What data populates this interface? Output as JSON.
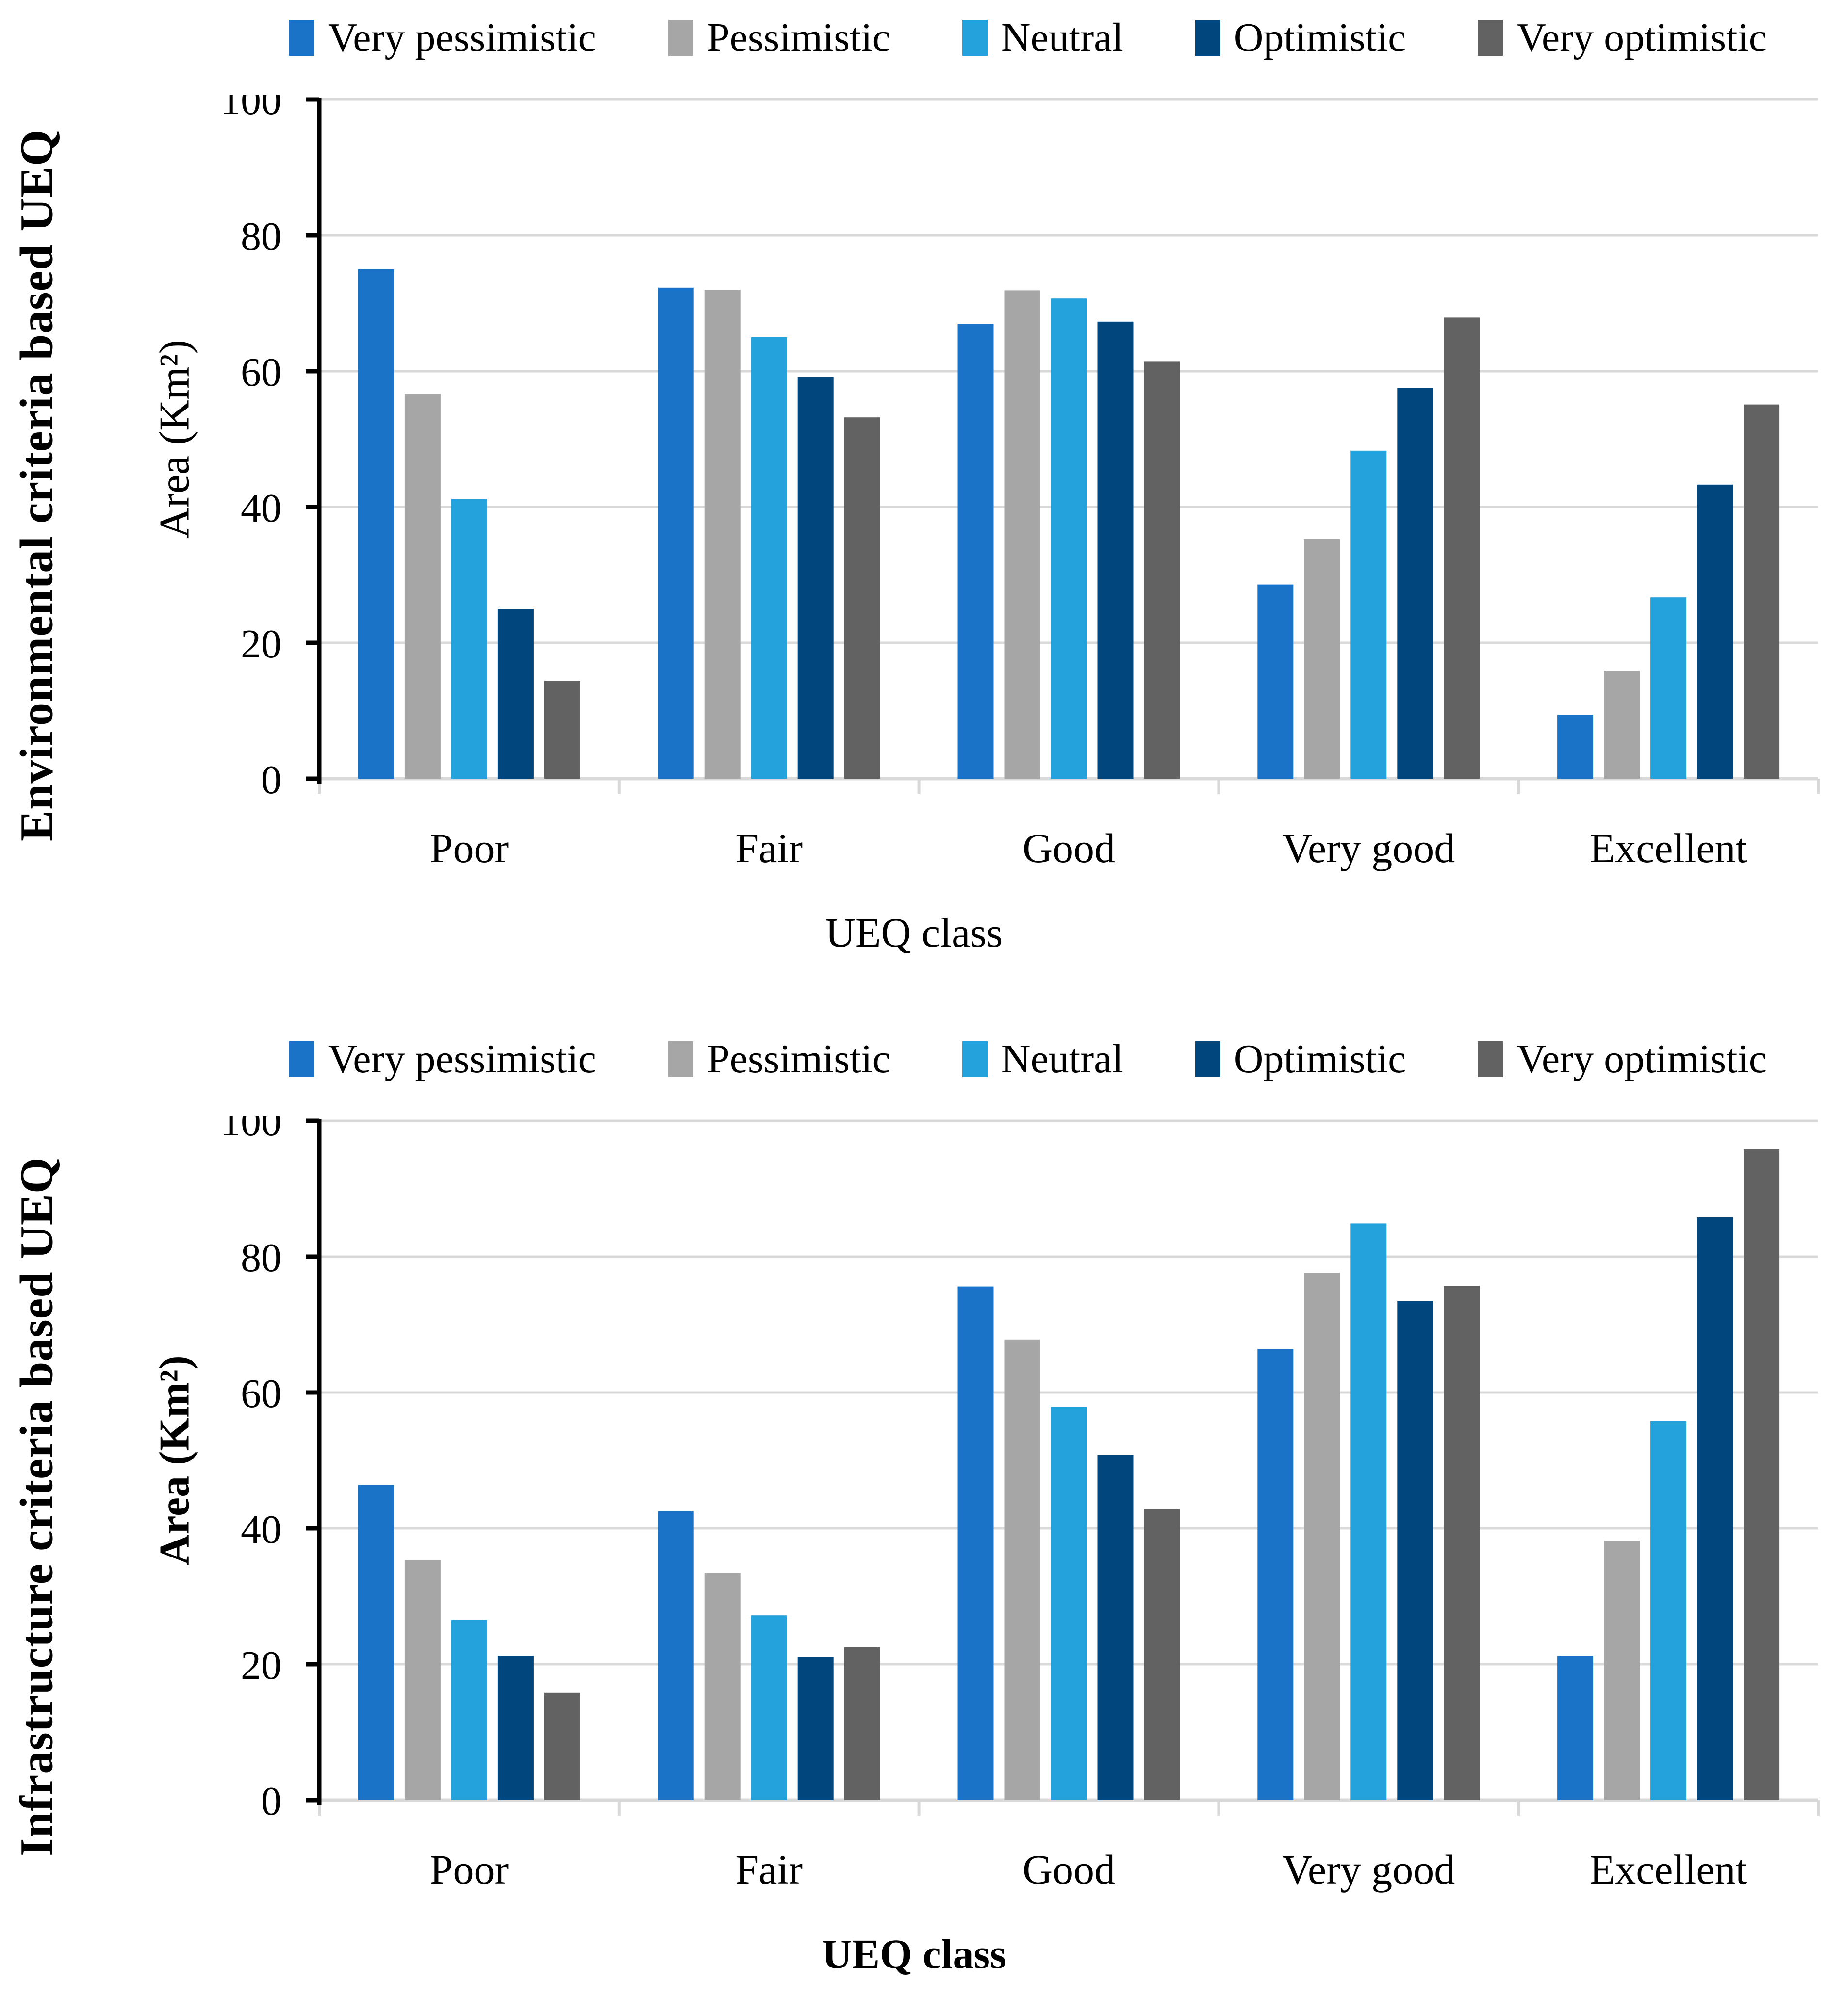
{
  "page": {
    "background": "#FFFFFF"
  },
  "styles": {
    "gridline_color": "#D9D9D9",
    "x_axis_color": "#D9D9D9",
    "y_axis_color": "#000000",
    "text_color": "#000000"
  },
  "chart_data": [
    {
      "type": "bar",
      "title": "Environmental criteria based UEQ",
      "xlabel": "UEQ class",
      "ylabel": "Area (Km²)",
      "categories": [
        "Poor",
        "Fair",
        "Good",
        "Very good",
        "Excellent"
      ],
      "series": [
        {
          "name": "Very pessimistic",
          "color": "#1B73C8",
          "values": [
            75,
            72.3,
            67,
            28.6,
            9.4
          ]
        },
        {
          "name": "Pessimistic",
          "color": "#A6A6A6",
          "values": [
            56.6,
            72,
            71.9,
            35.3,
            15.9
          ]
        },
        {
          "name": "Neutral",
          "color": "#24A2DB",
          "values": [
            41.2,
            65,
            70.7,
            48.3,
            26.7
          ]
        },
        {
          "name": "Optimistic",
          "color": "#02467E",
          "values": [
            25,
            59.1,
            67.3,
            57.5,
            43.3
          ]
        },
        {
          "name": "Very optimistic",
          "color": "#626262",
          "values": [
            14.4,
            53.2,
            61.4,
            67.9,
            55.1
          ]
        }
      ],
      "ylim": [
        0,
        100
      ],
      "yticks": [
        0,
        20,
        40,
        60,
        80,
        100
      ],
      "grid": true,
      "legend_position": "top"
    },
    {
      "type": "bar",
      "title": "Infrastructure criteria based UEQ",
      "xlabel": "UEQ class",
      "ylabel": "Area (Km²)",
      "categories": [
        "Poor",
        "Fair",
        "Good",
        "Very good",
        "Excellent"
      ],
      "series": [
        {
          "name": "Very pessimistic",
          "color": "#1B73C8",
          "values": [
            46.4,
            42.5,
            75.6,
            66.4,
            21.2
          ]
        },
        {
          "name": "Pessimistic",
          "color": "#A6A6A6",
          "values": [
            35.3,
            33.5,
            67.8,
            77.6,
            38.2
          ]
        },
        {
          "name": "Neutral",
          "color": "#24A2DB",
          "values": [
            26.5,
            27.2,
            57.9,
            84.9,
            55.8
          ]
        },
        {
          "name": "Optimistic",
          "color": "#02467E",
          "values": [
            21.2,
            21,
            50.8,
            73.5,
            85.8
          ]
        },
        {
          "name": "Very optimistic",
          "color": "#626262",
          "values": [
            15.8,
            22.5,
            42.8,
            75.7,
            95.8
          ]
        }
      ],
      "ylim": [
        0,
        100
      ],
      "yticks": [
        0,
        20,
        40,
        60,
        80,
        100
      ],
      "grid": true,
      "legend_position": "top"
    }
  ]
}
